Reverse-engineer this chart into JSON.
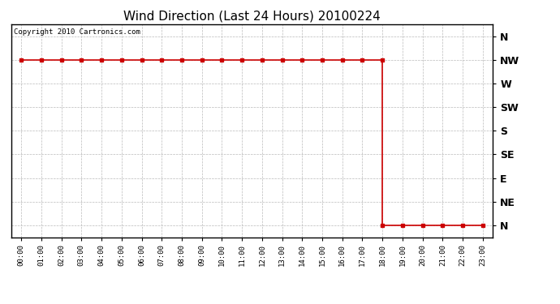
{
  "title": "Wind Direction (Last 24 Hours) 20100224",
  "copyright_text": "Copyright 2010 Cartronics.com",
  "line_color": "#cc0000",
  "background_color": "#ffffff",
  "plot_bg_color": "#ffffff",
  "grid_color": "#bbbbbb",
  "ytick_labels": [
    "N",
    "NW",
    "W",
    "SW",
    "S",
    "SE",
    "E",
    "NE",
    "N"
  ],
  "ytick_values": [
    8,
    7,
    6,
    5,
    4,
    3,
    2,
    1,
    0
  ],
  "xtick_labels": [
    "00:00",
    "01:00",
    "02:00",
    "03:00",
    "04:00",
    "05:00",
    "06:00",
    "07:00",
    "08:00",
    "09:00",
    "10:00",
    "11:00",
    "12:00",
    "13:00",
    "14:00",
    "15:00",
    "16:00",
    "17:00",
    "18:00",
    "19:00",
    "20:00",
    "21:00",
    "22:00",
    "23:00"
  ],
  "x_values": [
    0,
    1,
    2,
    3,
    4,
    5,
    6,
    7,
    8,
    9,
    10,
    11,
    12,
    13,
    14,
    15,
    16,
    17,
    18,
    18,
    19,
    20,
    21,
    22,
    23
  ],
  "y_values": [
    7,
    7,
    7,
    7,
    7,
    7,
    7,
    7,
    7,
    7,
    7,
    7,
    7,
    7,
    7,
    7,
    7,
    7,
    7,
    0,
    0,
    0,
    0,
    0,
    0
  ],
  "xlim": [
    -0.5,
    23.5
  ],
  "ylim": [
    -0.5,
    8.5
  ],
  "title_fontsize": 11,
  "marker_size": 3,
  "figwidth": 6.9,
  "figheight": 3.75,
  "dpi": 100
}
